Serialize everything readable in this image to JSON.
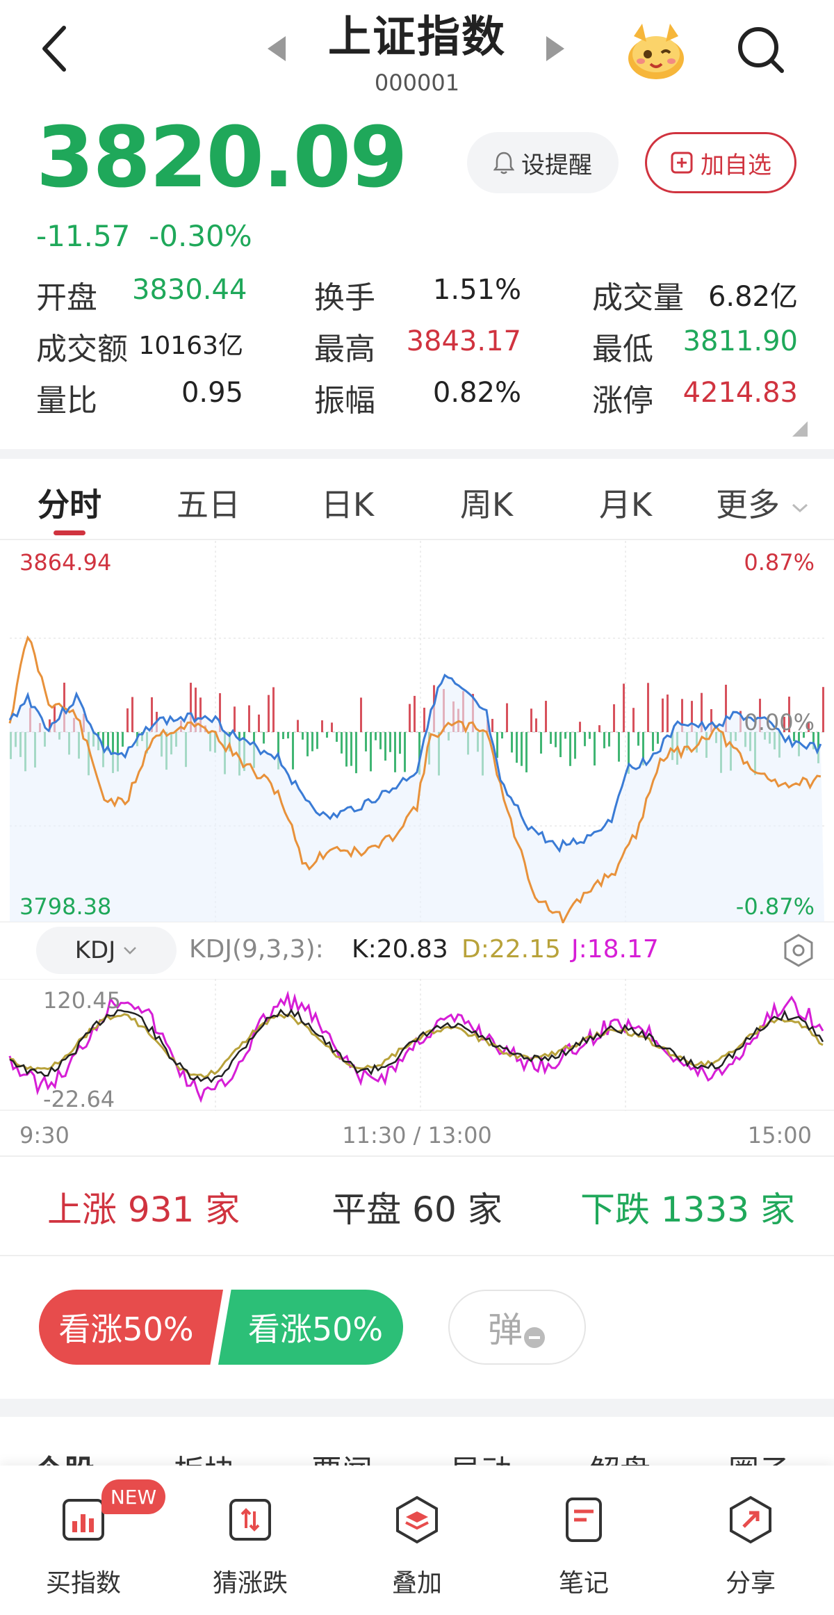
{
  "header": {
    "title": "上证指数",
    "code": "000001"
  },
  "quote": {
    "price": "3820.09",
    "change": "-11.57",
    "change_pct": "-0.30%",
    "remind_label": "设提醒",
    "add_label": "加自选"
  },
  "stats": [
    {
      "label": "开盘",
      "value": "3830.44",
      "color": "green"
    },
    {
      "label": "换手",
      "value": "1.51%",
      "color": "black"
    },
    {
      "label": "成交量",
      "value": "6.82亿",
      "color": "black"
    },
    {
      "label": "成交额",
      "value": "10163亿",
      "color": "black"
    },
    {
      "label": "最高",
      "value": "3843.17",
      "color": "red"
    },
    {
      "label": "最低",
      "value": "3811.90",
      "color": "green"
    },
    {
      "label": "量比",
      "value": "0.95",
      "color": "black"
    },
    {
      "label": "振幅",
      "value": "0.82%",
      "color": "black"
    },
    {
      "label": "涨停",
      "value": "4214.83",
      "color": "red"
    }
  ],
  "tabs": [
    "分时",
    "五日",
    "日K",
    "周K",
    "月K",
    "更多"
  ],
  "chart": {
    "price_high": "3864.94",
    "price_low": "3798.38",
    "pct_high": "0.87%",
    "pct_zero": "0.00%",
    "pct_low": "-0.87%",
    "time_start": "9:30",
    "time_mid": "11:30 / 13:00",
    "time_end": "15:00",
    "kdj_selector": "KDJ",
    "kdj_params": "KDJ(9,3,3):",
    "k": "K:20.83",
    "d": "D:22.15",
    "j": "J:18.17",
    "kdj_high": "120.45",
    "kdj_low": "-22.64"
  },
  "breadth": {
    "up": "上涨 931 家",
    "flat": "平盘 60 家",
    "down": "下跌 1333 家"
  },
  "vote": {
    "bull": "看涨50%",
    "bear": "看涨50%",
    "danmu": "弹"
  },
  "subtabs": [
    "个股",
    "板块",
    "要闻",
    "异动",
    "解盘",
    "圈子"
  ],
  "bottom_nav": {
    "badge": "NEW",
    "items": [
      "买指数",
      "猜涨跌",
      "叠加",
      "笔记",
      "分享"
    ]
  },
  "colors": {
    "up": "#d0333f",
    "down": "#1fa85a",
    "index_line": "#3a7bd5",
    "avg_line": "#e8913a",
    "k": "#222222",
    "d": "#b8a23a",
    "j": "#d61ed6"
  }
}
